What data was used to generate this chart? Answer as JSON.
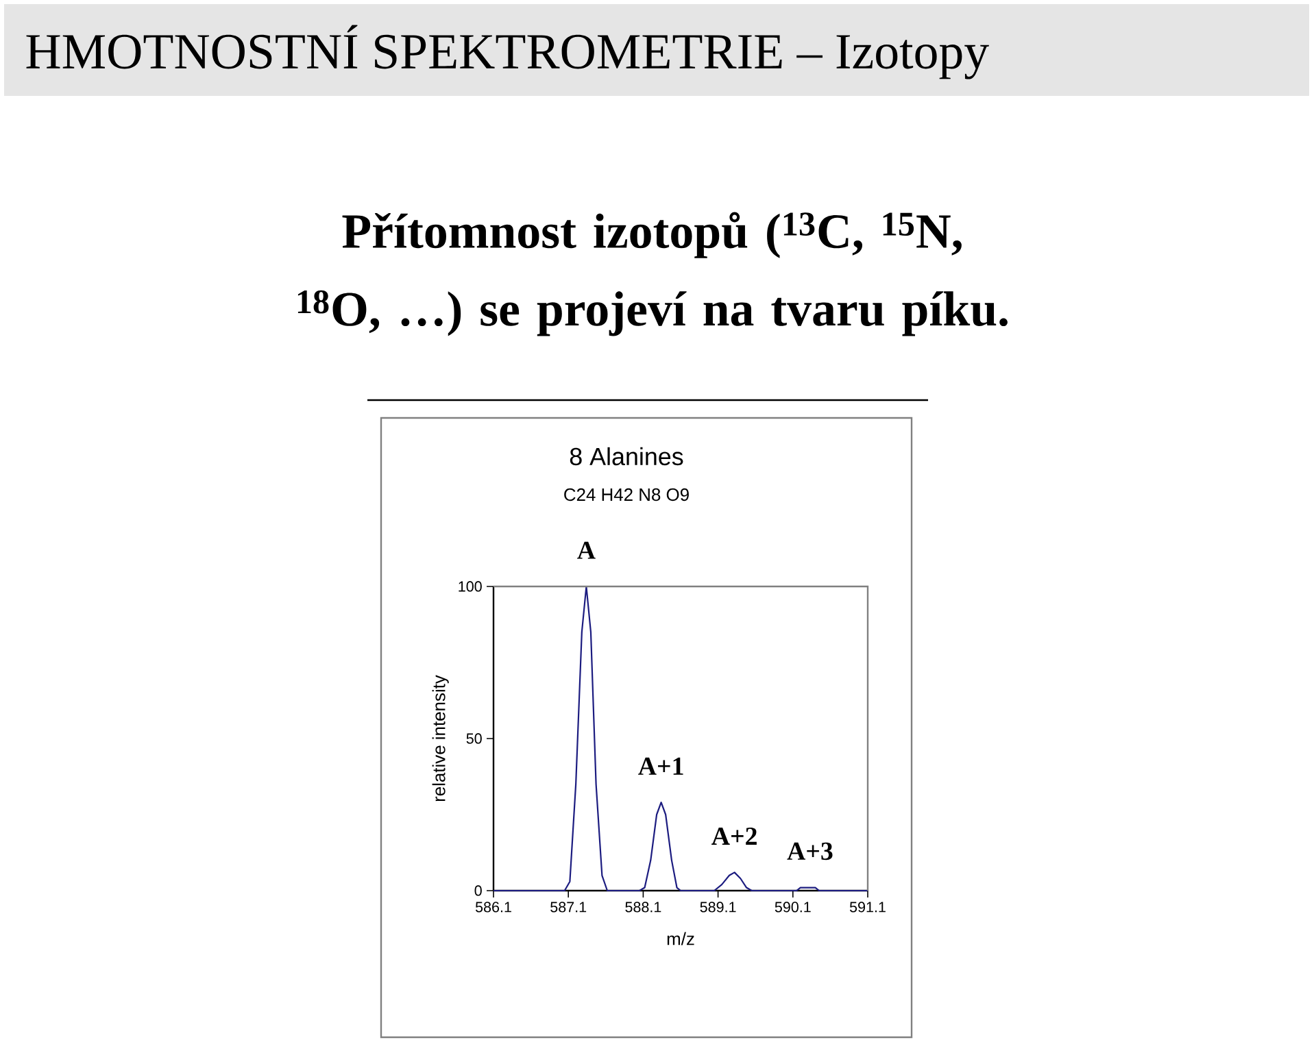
{
  "chart_data": {
    "type": "line",
    "title": "HMOTNOSTNÍ SPEKTROMETRIE – Izotopy",
    "subtitle": "Přítomnost izotopů ($^{13}$C, $^{15}$N, $^{18}$O, …) se projeví na tvaru píku.",
    "xlabel": "m/z",
    "ylabel": "relative intensity",
    "annotations": [
      "8 Alanines",
      "C24 H42 N8 O9",
      {
        "text": "A",
        "x": 587.34,
        "y": 100
      },
      {
        "text": "A+1",
        "x": 588.34,
        "y": 29
      },
      {
        "text": "A+2",
        "x": 589.32,
        "y": 6
      },
      {
        "text": "A+3",
        "x": 590.33,
        "y": 1
      }
    ],
    "x": [
      586.1,
      587.05,
      587.12,
      587.2,
      587.28,
      587.34,
      587.4,
      587.47,
      587.55,
      587.62,
      588.05,
      588.12,
      588.2,
      588.28,
      588.34,
      588.4,
      588.48,
      588.55,
      588.6,
      589.05,
      589.15,
      589.25,
      589.32,
      589.4,
      589.48,
      589.55,
      590.15,
      590.2,
      590.4,
      590.45,
      591.1
    ],
    "values": [
      0,
      0,
      3,
      35,
      85,
      100,
      85,
      35,
      5,
      0,
      0,
      1,
      10,
      25,
      29,
      25,
      10,
      1,
      0,
      0,
      2,
      5,
      6,
      4,
      1,
      0,
      0,
      1,
      1,
      0,
      0
    ],
    "color": "#1c1c80",
    "xlim": [
      586.1,
      591.1
    ],
    "ylim": [
      0,
      100
    ],
    "xticks": [
      586.1,
      587.1,
      588.1,
      589.1,
      590.1,
      591.1
    ],
    "yticks": [
      0,
      50,
      100
    ],
    "marker": "none",
    "line_style": "solid"
  }
}
